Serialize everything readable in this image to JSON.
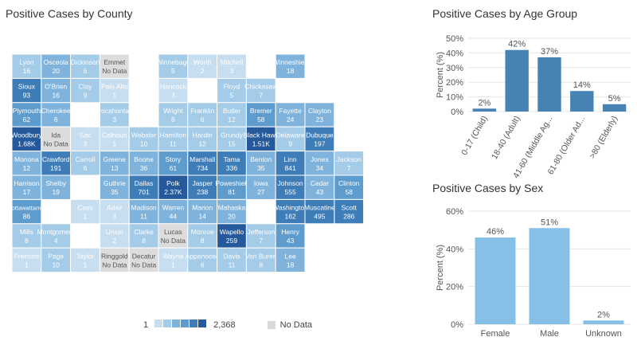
{
  "map": {
    "title": "Positive Cases by County",
    "legend": {
      "min": "1",
      "max": "2,368",
      "no_data": "No Data",
      "swatches": [
        "#c7def0",
        "#a4cbe8",
        "#7fb3dc",
        "#5e9ccd",
        "#3e7db8",
        "#25599b"
      ]
    },
    "colors": {
      "no_data": "#dcdcdc",
      "stroke": "#ffffff"
    },
    "counties": [
      {
        "name": "Lyon",
        "value": "16",
        "col": 0,
        "row": 0,
        "shade": 1
      },
      {
        "name": "Osceola",
        "value": "20",
        "col": 1,
        "row": 0,
        "shade": 2
      },
      {
        "name": "Dickinson",
        "value": "6",
        "col": 2,
        "row": 0,
        "shade": 1
      },
      {
        "name": "Emmet",
        "value": "No Data",
        "col": 3,
        "row": 0,
        "shade": -1
      },
      {
        "name": "Winnebago",
        "value": "5",
        "col": 5,
        "row": 0,
        "shade": 1
      },
      {
        "name": "Worth",
        "value": "2",
        "col": 6,
        "row": 0,
        "shade": 0
      },
      {
        "name": "Mitchell",
        "value": "3",
        "col": 7,
        "row": 0,
        "shade": 0
      },
      {
        "name": "Winneshiek",
        "value": "18",
        "col": 9,
        "row": 0,
        "shade": 2
      },
      {
        "name": "Sioux",
        "value": "93",
        "col": 0,
        "row": 1,
        "shade": 4
      },
      {
        "name": "O'Brien",
        "value": "16",
        "col": 1,
        "row": 1,
        "shade": 2
      },
      {
        "name": "Clay",
        "value": "9",
        "col": 2,
        "row": 1,
        "shade": 1
      },
      {
        "name": "Palo Alto",
        "value": "1",
        "col": 3,
        "row": 1,
        "shade": 0
      },
      {
        "name": "Hancock",
        "value": "3",
        "col": 5,
        "row": 1,
        "shade": 0
      },
      {
        "name": "Floyd",
        "value": "5",
        "col": 7,
        "row": 1,
        "shade": 1
      },
      {
        "name": "Chickasaw",
        "value": "7",
        "col": 8,
        "row": 1,
        "shade": 1
      },
      {
        "name": "Plymouth",
        "value": "62",
        "col": 0,
        "row": 2,
        "shade": 3
      },
      {
        "name": "Cherokee",
        "value": "6",
        "col": 1,
        "row": 2,
        "shade": 2
      },
      {
        "name": "Pocahontas",
        "value": "3",
        "col": 3,
        "row": 2,
        "shade": 1
      },
      {
        "name": "Wright",
        "value": "6",
        "col": 5,
        "row": 2,
        "shade": 1
      },
      {
        "name": "Franklin",
        "value": "6",
        "col": 6,
        "row": 2,
        "shade": 1
      },
      {
        "name": "Butler",
        "value": "12",
        "col": 7,
        "row": 2,
        "shade": 1
      },
      {
        "name": "Bremer",
        "value": "58",
        "col": 8,
        "row": 2,
        "shade": 3
      },
      {
        "name": "Fayette",
        "value": "24",
        "col": 9,
        "row": 2,
        "shade": 2
      },
      {
        "name": "Clayton",
        "value": "23",
        "col": 10,
        "row": 2,
        "shade": 2
      },
      {
        "name": "Woodbury",
        "value": "1.68K",
        "col": 0,
        "row": 3,
        "shade": 5
      },
      {
        "name": "Ida",
        "value": "No Data",
        "col": 1,
        "row": 3,
        "shade": -1
      },
      {
        "name": "Sac",
        "value": "3",
        "col": 2,
        "row": 3,
        "shade": 0
      },
      {
        "name": "Calhoun",
        "value": "1",
        "col": 3,
        "row": 3,
        "shade": 0
      },
      {
        "name": "Webster",
        "value": "10",
        "col": 4,
        "row": 3,
        "shade": 1
      },
      {
        "name": "Hamilton",
        "value": "11",
        "col": 5,
        "row": 3,
        "shade": 1
      },
      {
        "name": "Hardin",
        "value": "12",
        "col": 6,
        "row": 3,
        "shade": 1
      },
      {
        "name": "Grundy",
        "value": "15",
        "col": 7,
        "row": 3,
        "shade": 1
      },
      {
        "name": "Black Hawk",
        "value": "1.51K",
        "col": 8,
        "row": 3,
        "shade": 5
      },
      {
        "name": "Delaware",
        "value": "9",
        "col": 9,
        "row": 3,
        "shade": 1
      },
      {
        "name": "Dubuque",
        "value": "197",
        "col": 10,
        "row": 3,
        "shade": 4
      },
      {
        "name": "Monona",
        "value": "12",
        "col": 0,
        "row": 4,
        "shade": 2
      },
      {
        "name": "Crawford",
        "value": "191",
        "col": 1,
        "row": 4,
        "shade": 4
      },
      {
        "name": "Carroll",
        "value": "6",
        "col": 2,
        "row": 4,
        "shade": 1
      },
      {
        "name": "Greene",
        "value": "13",
        "col": 3,
        "row": 4,
        "shade": 2
      },
      {
        "name": "Boone",
        "value": "36",
        "col": 4,
        "row": 4,
        "shade": 2
      },
      {
        "name": "Story",
        "value": "61",
        "col": 5,
        "row": 4,
        "shade": 3
      },
      {
        "name": "Marshall",
        "value": "734",
        "col": 6,
        "row": 4,
        "shade": 4
      },
      {
        "name": "Tama",
        "value": "336",
        "col": 7,
        "row": 4,
        "shade": 4
      },
      {
        "name": "Benton",
        "value": "35",
        "col": 8,
        "row": 4,
        "shade": 2
      },
      {
        "name": "Linn",
        "value": "841",
        "col": 9,
        "row": 4,
        "shade": 4
      },
      {
        "name": "Jones",
        "value": "34",
        "col": 10,
        "row": 4,
        "shade": 2
      },
      {
        "name": "Jackson",
        "value": "7",
        "col": 11,
        "row": 4,
        "shade": 1
      },
      {
        "name": "Harrison",
        "value": "17",
        "col": 0,
        "row": 5,
        "shade": 2
      },
      {
        "name": "Shelby",
        "value": "19",
        "col": 1,
        "row": 5,
        "shade": 2
      },
      {
        "name": "Guthrie",
        "value": "35",
        "col": 3,
        "row": 5,
        "shade": 2
      },
      {
        "name": "Dallas",
        "value": "701",
        "col": 4,
        "row": 5,
        "shade": 4
      },
      {
        "name": "Polk",
        "value": "2.37K",
        "col": 5,
        "row": 5,
        "shade": 5
      },
      {
        "name": "Jasper",
        "value": "238",
        "col": 6,
        "row": 5,
        "shade": 4
      },
      {
        "name": "Poweshiek",
        "value": "81",
        "col": 7,
        "row": 5,
        "shade": 3
      },
      {
        "name": "Iowa",
        "value": "27",
        "col": 8,
        "row": 5,
        "shade": 2
      },
      {
        "name": "Johnson",
        "value": "555",
        "col": 9,
        "row": 5,
        "shade": 4
      },
      {
        "name": "Cedar",
        "value": "43",
        "col": 10,
        "row": 5,
        "shade": 2
      },
      {
        "name": "Clinton",
        "value": "58",
        "col": 11,
        "row": 5,
        "shade": 3
      },
      {
        "name": "Scott",
        "value": "286",
        "col": 11,
        "row": 6,
        "shade": 4
      },
      {
        "name": "Pottawattamie",
        "value": "86",
        "col": 0,
        "row": 6,
        "shade": 3
      },
      {
        "name": "Cass",
        "value": "1",
        "col": 2,
        "row": 6,
        "shade": 0
      },
      {
        "name": "Adair",
        "value": "3",
        "col": 3,
        "row": 6,
        "shade": 0
      },
      {
        "name": "Madison",
        "value": "11",
        "col": 4,
        "row": 6,
        "shade": 2
      },
      {
        "name": "Warren",
        "value": "44",
        "col": 5,
        "row": 6,
        "shade": 2
      },
      {
        "name": "Marion",
        "value": "14",
        "col": 6,
        "row": 6,
        "shade": 2
      },
      {
        "name": "Mahaska",
        "value": "20",
        "col": 7,
        "row": 6,
        "shade": 2
      },
      {
        "name": "Washington",
        "value": "162",
        "col": 9,
        "row": 6,
        "shade": 4
      },
      {
        "name": "Muscatine",
        "value": "495",
        "col": 10,
        "row": 6,
        "shade": 4
      },
      {
        "name": "Mills",
        "value": "8",
        "col": 0,
        "row": 7,
        "shade": 1
      },
      {
        "name": "Montgomery",
        "value": "4",
        "col": 1,
        "row": 7,
        "shade": 1
      },
      {
        "name": "Union",
        "value": "2",
        "col": 3,
        "row": 7,
        "shade": 0
      },
      {
        "name": "Clarke",
        "value": "8",
        "col": 4,
        "row": 7,
        "shade": 1
      },
      {
        "name": "Lucas",
        "value": "No Data",
        "col": 5,
        "row": 7,
        "shade": -1
      },
      {
        "name": "Monroe",
        "value": "8",
        "col": 6,
        "row": 7,
        "shade": 1
      },
      {
        "name": "Wapello",
        "value": "259",
        "col": 7,
        "row": 7,
        "shade": 5
      },
      {
        "name": "Jefferson",
        "value": "7",
        "col": 8,
        "row": 7,
        "shade": 1
      },
      {
        "name": "Henry",
        "value": "43",
        "col": 9,
        "row": 7,
        "shade": 3
      },
      {
        "name": "Fremont",
        "value": "1",
        "col": 0,
        "row": 8,
        "shade": 0
      },
      {
        "name": "Page",
        "value": "10",
        "col": 1,
        "row": 8,
        "shade": 1
      },
      {
        "name": "Taylor",
        "value": "1",
        "col": 2,
        "row": 8,
        "shade": 0
      },
      {
        "name": "Ringgold",
        "value": "No Data",
        "col": 3,
        "row": 8,
        "shade": -1
      },
      {
        "name": "Decatur",
        "value": "No Data",
        "col": 4,
        "row": 8,
        "shade": -1
      },
      {
        "name": "Wayne",
        "value": "1",
        "col": 5,
        "row": 8,
        "shade": 0
      },
      {
        "name": "Appanoose",
        "value": "6",
        "col": 6,
        "row": 8,
        "shade": 1
      },
      {
        "name": "Davis",
        "value": "11",
        "col": 7,
        "row": 8,
        "shade": 1
      },
      {
        "name": "Van Buren",
        "value": "8",
        "col": 8,
        "row": 8,
        "shade": 1
      },
      {
        "name": "Lee",
        "value": "18",
        "col": 9,
        "row": 8,
        "shade": 2
      }
    ]
  },
  "chart_data": [
    {
      "type": "bar",
      "title": "Positive Cases by Age Group",
      "ylabel": "Percent (%)",
      "categories": [
        "0-17 (Child)",
        "18-40 (Adult)",
        "41-60 (Middle Ag...",
        "61-80 (Older Ad...",
        ">80 (Elderly)"
      ],
      "values": [
        2,
        42,
        37,
        14,
        5
      ],
      "value_labels": [
        "2%",
        "42%",
        "37%",
        "14%",
        "5%"
      ],
      "ylim": [
        0,
        50
      ],
      "yticks": [
        0,
        10,
        20,
        30,
        40,
        50
      ],
      "ytick_labels": [
        "0%",
        "10%",
        "20%",
        "30%",
        "40%",
        "50%"
      ],
      "grid": true,
      "bar_color": "#4682b4"
    },
    {
      "type": "bar",
      "title": "Positive Cases by Sex",
      "ylabel": "Percent (%)",
      "categories": [
        "Female",
        "Male",
        "Unknown"
      ],
      "values": [
        46,
        51,
        2
      ],
      "value_labels": [
        "46%",
        "51%",
        "2%"
      ],
      "ylim": [
        0,
        60
      ],
      "yticks": [
        0,
        20,
        40,
        60
      ],
      "ytick_labels": [
        "0%",
        "20%",
        "40%",
        "60%"
      ],
      "grid": true,
      "bar_color": "#86c0e6"
    }
  ]
}
